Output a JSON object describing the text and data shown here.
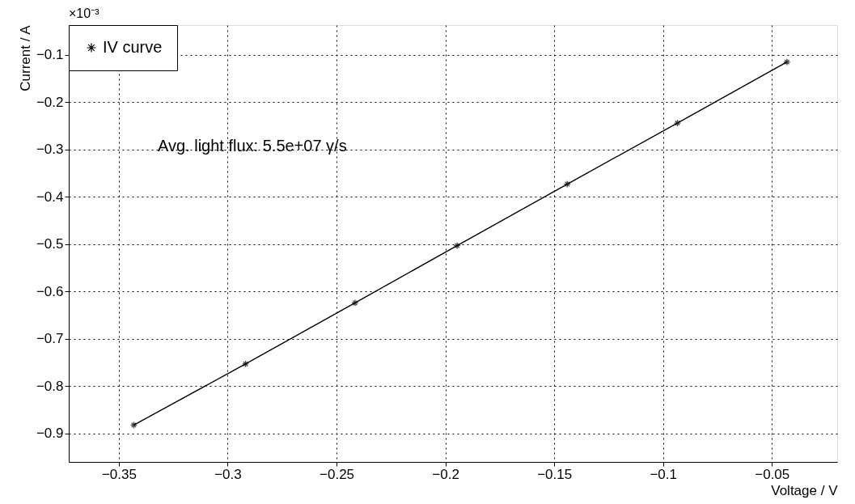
{
  "chart_data": {
    "type": "line",
    "xlabel": "Voltage / V",
    "ylabel": "Current / A",
    "x": [
      -0.3431,
      -0.2918,
      -0.2415,
      -0.1946,
      -0.144,
      -0.0934,
      -0.0431
    ],
    "series": [
      {
        "name": "IV curve",
        "color": "#000000",
        "values": [
          -0.882,
          -0.753,
          -0.624,
          -0.503,
          -0.373,
          -0.244,
          -0.115
        ]
      }
    ],
    "xlim": [
      -0.373,
      -0.02
    ],
    "xticks": [
      -0.35,
      -0.3,
      -0.25,
      -0.2,
      -0.15,
      -0.1,
      -0.05
    ],
    "ylim": [
      -0.96,
      -0.037
    ],
    "yticks": [
      -0.9,
      -0.8,
      -0.7,
      -0.6,
      -0.5,
      -0.4,
      -0.3,
      -0.2,
      -0.1
    ],
    "annotations": [
      "×10⁻³",
      "Avg. light flux: 5.5e+07 γ/s"
    ],
    "grid": true,
    "legend": "top left",
    "marker": "cross",
    "line_style": "solid"
  }
}
